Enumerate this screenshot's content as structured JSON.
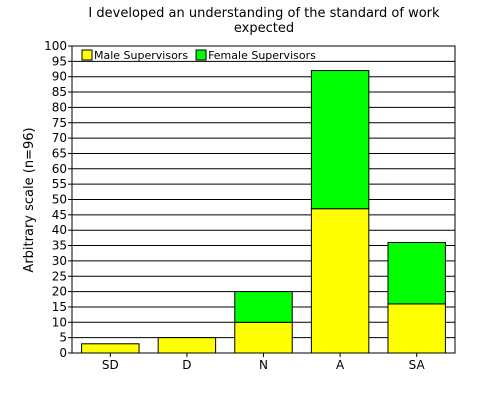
{
  "chart_data": {
    "type": "bar",
    "stacked": true,
    "title_lines": [
      "I developed an understanding of the standard of work",
      "expected"
    ],
    "xlabel": "",
    "ylabel": "Arbitrary scale (n=96)",
    "categories": [
      "SD",
      "D",
      "N",
      "A",
      "SA"
    ],
    "ylim": [
      0,
      100
    ],
    "ytick_step": 5,
    "grid": "horizontal",
    "legend_position": "top-left",
    "series": [
      {
        "name": "Male Supervisors",
        "color": "#ffff00",
        "values": [
          3,
          5,
          10,
          47,
          16
        ]
      },
      {
        "name": "Female Supervisors",
        "color": "#00ff00",
        "values": [
          0,
          0,
          10,
          45,
          20
        ]
      }
    ]
  }
}
